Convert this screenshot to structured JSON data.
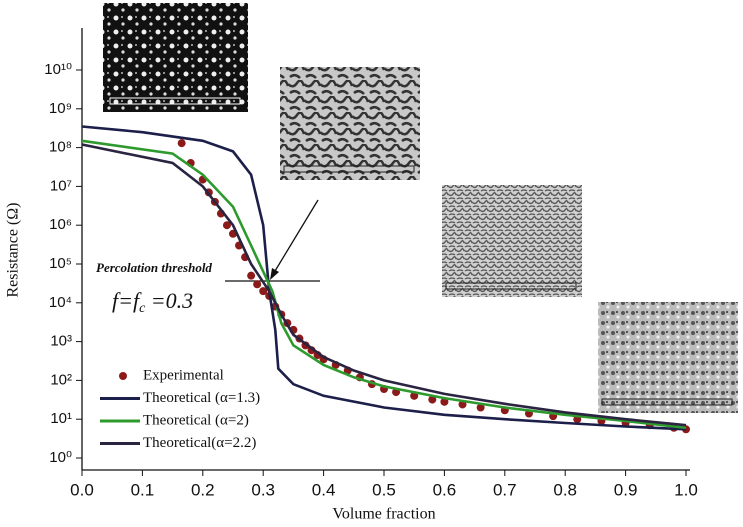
{
  "chart_data": {
    "type": "scatter",
    "xlabel": "Volume fraction",
    "ylabel": "Resistance (Ω)",
    "xlim": [
      0,
      1
    ],
    "ylim": [
      0.5,
      100000000000.0
    ],
    "ylog": true,
    "xticks": [
      {
        "value": 0,
        "label": "0.0"
      },
      0.1,
      0.2,
      0.3,
      0.4,
      0.5,
      0.6,
      0.7,
      0.8,
      0.9,
      {
        "value": 1,
        "label": "1.0"
      }
    ],
    "yticks": [
      {
        "value": 1,
        "label": "10⁰"
      },
      {
        "value": 10,
        "label": "10¹"
      },
      {
        "value": 100,
        "label": "10²"
      },
      {
        "value": 1000,
        "label": "10³"
      },
      {
        "value": 10000,
        "label": "10⁴"
      },
      {
        "value": 100000,
        "label": "10⁵"
      },
      {
        "value": 1000000,
        "label": "10⁶"
      },
      {
        "value": 10000000,
        "label": "10⁷"
      },
      {
        "value": 100000000,
        "label": "10⁸"
      },
      {
        "value": 1000000000,
        "label": "10⁹"
      },
      {
        "value": 10000000000,
        "label": "10¹⁰"
      }
    ],
    "annotation": "Percolation threshold",
    "formula": [
      "f=f",
      "c",
      " =0.3"
    ],
    "series": [
      {
        "name": "Experimental",
        "type": "scatter",
        "color": "#8b1a1a",
        "x": [
          0.165,
          0.18,
          0.2,
          0.21,
          0.22,
          0.23,
          0.24,
          0.25,
          0.26,
          0.27,
          0.28,
          0.29,
          0.3,
          0.31,
          0.32,
          0.33,
          0.34,
          0.35,
          0.36,
          0.37,
          0.38,
          0.39,
          0.4,
          0.42,
          0.44,
          0.46,
          0.48,
          0.5,
          0.52,
          0.55,
          0.58,
          0.6,
          0.63,
          0.66,
          0.7,
          0.74,
          0.78,
          0.82,
          0.86,
          0.9,
          0.94,
          0.98,
          1.0
        ],
        "values": [
          130000000,
          40000000,
          15000000,
          7000000,
          4000000,
          2000000,
          1000000,
          600000,
          300000,
          150000,
          50000,
          30000,
          20000,
          15000,
          8000,
          5000,
          3000,
          2000,
          1200,
          800,
          600,
          450,
          350,
          250,
          180,
          120,
          80,
          60,
          50,
          40,
          32,
          28,
          24,
          20,
          17,
          14,
          12,
          10,
          9,
          8,
          7,
          6,
          5.5
        ]
      },
      {
        "name": "Theoretical (α=1.3)",
        "type": "line",
        "color": "#1c1f4a",
        "x": [
          0,
          0.1,
          0.2,
          0.25,
          0.28,
          0.3,
          0.31,
          0.32,
          0.325,
          0.35,
          0.4,
          0.5,
          0.6,
          0.7,
          0.8,
          0.9,
          1.0
        ],
        "values": [
          350000000,
          250000000,
          150000000,
          80000000,
          20000000,
          1000000,
          20000,
          2000,
          200,
          80,
          40,
          20,
          13,
          10,
          8,
          6.5,
          5.5
        ]
      },
      {
        "name": "Theoretical (α=2)",
        "type": "line",
        "color": "#2e9a2e",
        "x": [
          0,
          0.15,
          0.2,
          0.25,
          0.28,
          0.315,
          0.33,
          0.35,
          0.4,
          0.45,
          0.5,
          0.6,
          0.7,
          0.8,
          0.9,
          1.0
        ],
        "values": [
          150000000,
          70000000,
          20000000,
          3000000,
          300000,
          20000,
          3000,
          800,
          250,
          120,
          70,
          35,
          20,
          13,
          9,
          6
        ]
      },
      {
        "name": "Theoretical(α=2.2)",
        "type": "line",
        "color": "#2a2440",
        "x": [
          0,
          0.15,
          0.2,
          0.25,
          0.28,
          0.31,
          0.33,
          0.35,
          0.4,
          0.45,
          0.5,
          0.6,
          0.7,
          0.8,
          0.9,
          1.0
        ],
        "values": [
          120000000,
          40000000,
          10000000,
          1000000,
          100000,
          20000,
          5000,
          1500,
          400,
          180,
          100,
          45,
          25,
          15,
          10,
          7
        ]
      }
    ]
  }
}
